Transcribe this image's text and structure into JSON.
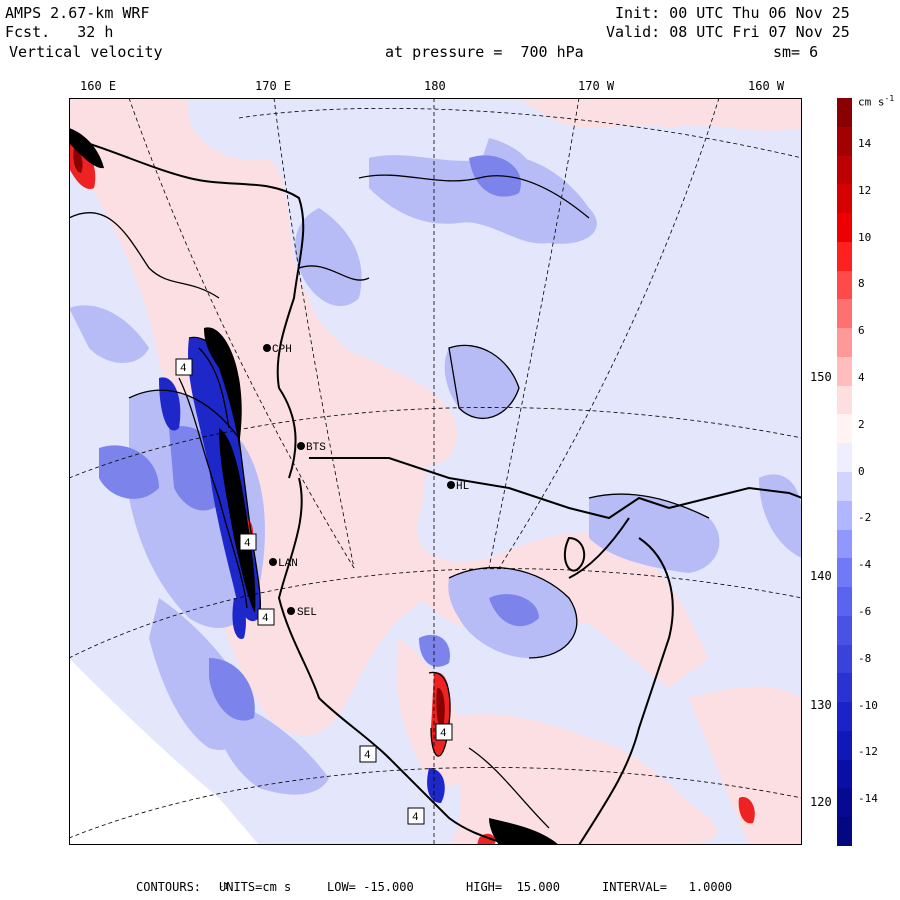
{
  "header": {
    "model": "AMPS 2.67-km WRF",
    "forecast": "Fcst.   32 h",
    "field": "Vertical velocity",
    "init": "Init: 00 UTC Thu 06 Nov 25",
    "valid": "Valid: 08 UTC Fri 07 Nov 25",
    "level": "at pressure =  700 hPa",
    "smoothing": "sm= 6"
  },
  "longitude_labels": [
    "160 E",
    "170 E",
    "180",
    "170 W",
    "160 W"
  ],
  "latitude_labels": [
    "150 W",
    "140 W",
    "130 W",
    "120 W"
  ],
  "stations": [
    "CPH",
    "BTS",
    "HL",
    "LAN",
    "SEL"
  ],
  "extreme_marks": [
    "4",
    "4",
    "4",
    "4",
    "4",
    "4"
  ],
  "colorbar": {
    "units": "cm s",
    "units_exp": "-1",
    "tick_labels": [
      "14",
      "12",
      "10",
      "8",
      "6",
      "4",
      "2",
      "0",
      "-2",
      "-4",
      "-6",
      "-8",
      "-10",
      "-12",
      "-14"
    ],
    "colors": [
      "#8a0000",
      "#a30000",
      "#bd0000",
      "#d60000",
      "#ee0000",
      "#ff2020",
      "#ff4a4a",
      "#ff7070",
      "#ff9898",
      "#ffbdbd",
      "#ffdede",
      "#fff3f3",
      "#eeeeff",
      "#d0d4ff",
      "#b0b6ff",
      "#9098ff",
      "#707af8",
      "#5a64f0",
      "#4a52e6",
      "#3a42dc",
      "#2a32d2",
      "#1a22c8",
      "#1018b8",
      "#080ea6",
      "#060a92",
      "#040880"
    ]
  },
  "footer": {
    "contours": "CONTOURS:",
    "units_label": "UNITS=cm s",
    "units_exp": "-1",
    "low": "LOW= -15.000",
    "high": "HIGH=  15.000",
    "interval": "INTERVAL=   1.0000"
  }
}
